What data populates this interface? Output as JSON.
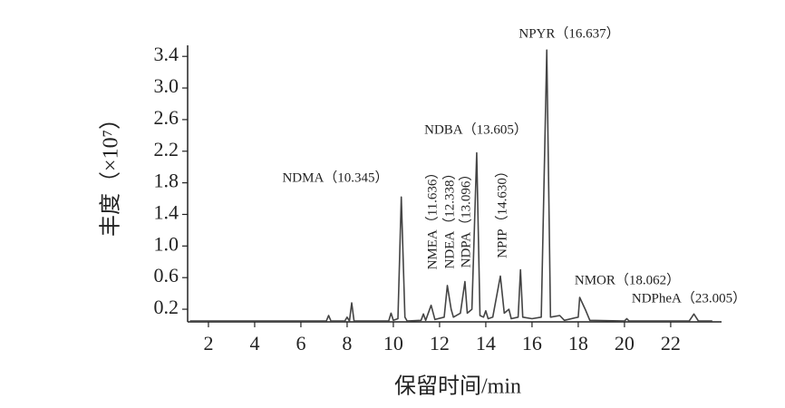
{
  "chart_data": {
    "type": "line",
    "ylabel": "丰度（×10⁷）",
    "xlabel": "保留时间/min",
    "color": "#444444",
    "x": [
      1.2,
      7.1,
      7.2,
      7.3,
      7.9,
      8.0,
      8.1,
      8.2,
      8.3,
      9.8,
      9.9,
      10.0,
      10.2,
      10.345,
      10.5,
      10.6,
      11.2,
      11.3,
      11.4,
      11.636,
      11.8,
      12.2,
      12.338,
      12.5,
      12.6,
      12.9,
      13.096,
      13.2,
      13.4,
      13.605,
      13.75,
      13.9,
      14.0,
      14.1,
      14.3,
      14.63,
      14.8,
      15.0,
      15.1,
      15.4,
      15.5,
      15.6,
      16.0,
      16.4,
      16.637,
      16.8,
      17.2,
      17.4,
      18.0,
      18.062,
      18.3,
      18.5,
      20.0,
      20.1,
      20.2,
      22.8,
      23.005,
      23.2,
      23.8
    ],
    "values": [
      0.05,
      0.05,
      0.12,
      0.05,
      0.05,
      0.1,
      0.05,
      0.28,
      0.05,
      0.05,
      0.15,
      0.06,
      0.08,
      1.62,
      0.1,
      0.05,
      0.06,
      0.14,
      0.06,
      0.25,
      0.07,
      0.1,
      0.5,
      0.2,
      0.1,
      0.15,
      0.55,
      0.15,
      0.2,
      2.18,
      0.12,
      0.1,
      0.18,
      0.08,
      0.1,
      0.62,
      0.15,
      0.2,
      0.08,
      0.1,
      0.7,
      0.1,
      0.08,
      0.1,
      3.48,
      0.1,
      0.12,
      0.06,
      0.1,
      0.35,
      0.2,
      0.06,
      0.05,
      0.08,
      0.05,
      0.05,
      0.14,
      0.05,
      0.05
    ],
    "xlim": [
      1.1,
      24.2
    ],
    "ylim": [
      0.04,
      3.54
    ],
    "xticks": [
      2,
      4,
      6,
      8,
      10,
      12,
      14,
      16,
      18,
      20,
      22
    ],
    "yticks": [
      0.2,
      0.6,
      {
        "value": 1,
        "label": "1.0"
      },
      1.4,
      1.8,
      2.2,
      2.6,
      {
        "value": 3,
        "label": "3.0"
      },
      3.4
    ],
    "annotations": [
      "NDMA（10.345）",
      "NMEA（11.636）",
      "NDEA（12.338）",
      "NDPA（13.096）",
      "NDBA（13.605）",
      "NPIP（14.630）",
      "NPYR（16.637）",
      "NMOR（18.062）",
      "NDPheA（23.005）"
    ]
  }
}
